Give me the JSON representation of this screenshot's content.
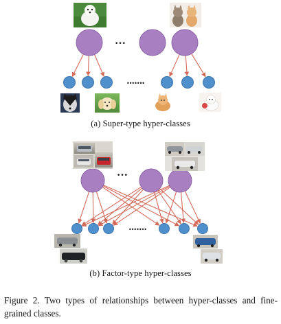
{
  "panels": {
    "a": {
      "caption": "(a)  Super-type hyper-classes",
      "hyper_gap": "•••",
      "fine_gap": "•••••••",
      "images": {
        "hyper_left": "white dog",
        "hyper_right": "two kittens",
        "fine_1": "husky",
        "fine_2": "golden puppy",
        "fine_3": "ginger kitten",
        "fine_4": "white kitten"
      }
    },
    "b": {
      "caption": "(b)  Factor-type hyper-classes",
      "hyper_gap": "•••",
      "fine_gap": "•••••••",
      "images": {
        "hyper_left": "front-view cars",
        "hyper_right": "side-view cars",
        "fine_left": "grey and black cars",
        "fine_right": "blue and silver cars"
      }
    }
  },
  "figure_caption": "Figure 2. Two types of relationships between hyper-classes and fine-grained classes.",
  "colors": {
    "hyper_node": "#a87fc0",
    "fine_node": "#4f8fcb",
    "edge": "#d46a5a"
  }
}
